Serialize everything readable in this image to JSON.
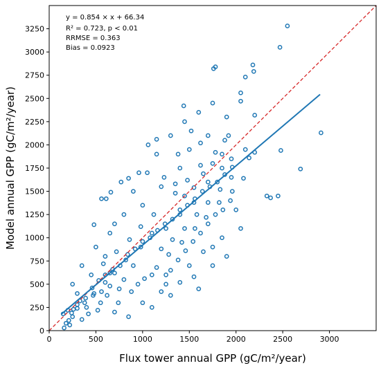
{
  "chart_data": {
    "type": "scatter",
    "xlabel": "Flux tower annual GPP (gC/m²/year)",
    "ylabel": "Model annual GPP (gC/m²/year)",
    "xlim": [
      0,
      3500
    ],
    "ylim": [
      0,
      3500
    ],
    "x_ticks": [
      0,
      500,
      1000,
      1500,
      2000,
      2500,
      3000
    ],
    "y_ticks": [
      0,
      250,
      500,
      750,
      1000,
      1250,
      1500,
      1750,
      2000,
      2250,
      2500,
      2750,
      3000,
      3250
    ],
    "grid": false,
    "annotations": {
      "equation": "y = 0.854 × x + 66.34",
      "r2": "R² = 0.723, p < 0.01",
      "rrmse": "RRMSE = 0.363",
      "bias": "Bias = 0.0923"
    },
    "fit_line": {
      "slope": 0.854,
      "intercept": 66.34,
      "x_range": [
        130,
        2900
      ]
    },
    "one_to_one_line": {
      "x_range": [
        0,
        3500
      ]
    },
    "colors": {
      "points": "#1f77b4",
      "fit": "#1f77b4",
      "one_to_one": "#d62728"
    },
    "points": [
      [
        2550,
        3280
      ],
      [
        2470,
        3050
      ],
      [
        1780,
        2840
      ],
      [
        1760,
        2820
      ],
      [
        2180,
        2860
      ],
      [
        2190,
        2790
      ],
      [
        2100,
        2730
      ],
      [
        1440,
        2420
      ],
      [
        2050,
        2560
      ],
      [
        2050,
        2470
      ],
      [
        2200,
        2320
      ],
      [
        2910,
        2130
      ],
      [
        2480,
        1940
      ],
      [
        2690,
        1740
      ],
      [
        2450,
        1450
      ],
      [
        2330,
        1450
      ],
      [
        2370,
        1430
      ],
      [
        2200,
        1920
      ],
      [
        2140,
        1860
      ],
      [
        150,
        180
      ],
      [
        200,
        220
      ],
      [
        300,
        280
      ],
      [
        480,
        400
      ],
      [
        650,
        620
      ],
      [
        820,
        760
      ],
      [
        980,
        900
      ],
      [
        1100,
        1050
      ],
      [
        1250,
        1100
      ],
      [
        1400,
        1250
      ],
      [
        1550,
        1380
      ],
      [
        1700,
        1600
      ],
      [
        1850,
        1750
      ],
      [
        1950,
        1850
      ],
      [
        2100,
        1950
      ],
      [
        400,
        250
      ],
      [
        550,
        300
      ],
      [
        700,
        200
      ],
      [
        850,
        150
      ],
      [
        1000,
        300
      ],
      [
        1300,
        380
      ],
      [
        1600,
        450
      ],
      [
        1900,
        800
      ],
      [
        2050,
        1100
      ],
      [
        1750,
        900
      ],
      [
        1500,
        700
      ],
      [
        1250,
        600
      ],
      [
        950,
        500
      ],
      [
        750,
        450
      ],
      [
        600,
        520
      ],
      [
        450,
        600
      ],
      [
        350,
        700
      ],
      [
        500,
        900
      ],
      [
        650,
        1050
      ],
      [
        800,
        1250
      ],
      [
        900,
        1500
      ],
      [
        1050,
        1700
      ],
      [
        1150,
        1900
      ],
      [
        1300,
        2100
      ],
      [
        1450,
        2250
      ],
      [
        1600,
        2350
      ],
      [
        1750,
        2450
      ],
      [
        1900,
        2300
      ],
      [
        1700,
        2100
      ],
      [
        1500,
        1950
      ],
      [
        1400,
        1750
      ],
      [
        1200,
        1550
      ],
      [
        1000,
        1350
      ],
      [
        700,
        1150
      ],
      [
        600,
        800
      ],
      [
        250,
        500
      ],
      [
        300,
        400
      ],
      [
        250,
        150
      ],
      [
        180,
        80
      ],
      [
        220,
        60
      ],
      [
        350,
        120
      ],
      [
        420,
        180
      ],
      [
        520,
        220
      ],
      [
        620,
        380
      ],
      [
        740,
        300
      ],
      [
        880,
        420
      ],
      [
        1020,
        560
      ],
      [
        1150,
        680
      ],
      [
        1280,
        820
      ],
      [
        1420,
        950
      ],
      [
        1560,
        1100
      ],
      [
        1680,
        1220
      ],
      [
        1820,
        1380
      ],
      [
        1960,
        1500
      ],
      [
        2080,
        1640
      ],
      [
        1350,
        1480
      ],
      [
        1480,
        1620
      ],
      [
        1620,
        1780
      ],
      [
        1780,
        1920
      ],
      [
        1880,
        2050
      ],
      [
        1120,
        1250
      ],
      [
        980,
        1120
      ],
      [
        860,
        980
      ],
      [
        720,
        850
      ],
      [
        580,
        720
      ],
      [
        1650,
        850
      ],
      [
        1550,
        580
      ],
      [
        1400,
        520
      ],
      [
        1200,
        420
      ],
      [
        1100,
        250
      ],
      [
        1750,
        700
      ],
      [
        1850,
        1000
      ],
      [
        2000,
        1300
      ],
      [
        1950,
        1650
      ],
      [
        1830,
        1520
      ],
      [
        1700,
        1380
      ],
      [
        1580,
        1250
      ],
      [
        1450,
        1100
      ],
      [
        1320,
        980
      ],
      [
        1200,
        880
      ],
      [
        480,
        1140
      ],
      [
        560,
        1420
      ],
      [
        610,
        1420
      ],
      [
        660,
        1490
      ],
      [
        770,
        1600
      ],
      [
        850,
        1640
      ],
      [
        960,
        1700
      ],
      [
        1060,
        2000
      ],
      [
        1150,
        2060
      ],
      [
        1230,
        1650
      ],
      [
        1350,
        1580
      ],
      [
        1450,
        1450
      ],
      [
        1550,
        1540
      ],
      [
        1650,
        1690
      ],
      [
        1750,
        1800
      ],
      [
        1850,
        1900
      ],
      [
        1920,
        2100
      ],
      [
        1620,
        2020
      ],
      [
        1520,
        2150
      ],
      [
        1380,
        1900
      ],
      [
        160,
        30
      ],
      [
        210,
        110
      ],
      [
        260,
        230
      ],
      [
        330,
        320
      ],
      [
        390,
        350
      ],
      [
        460,
        460
      ],
      [
        530,
        540
      ],
      [
        600,
        600
      ],
      [
        680,
        660
      ],
      [
        760,
        700
      ],
      [
        840,
        820
      ],
      [
        920,
        880
      ],
      [
        1000,
        960
      ],
      [
        1080,
        1000
      ],
      [
        1160,
        1080
      ],
      [
        1240,
        1150
      ],
      [
        1320,
        1200
      ],
      [
        1400,
        1300
      ],
      [
        1480,
        1350
      ],
      [
        1560,
        1420
      ],
      [
        1640,
        1500
      ],
      [
        1720,
        1550
      ],
      [
        1800,
        1600
      ],
      [
        1880,
        1680
      ],
      [
        1960,
        1760
      ],
      [
        1300,
        650
      ],
      [
        1380,
        760
      ],
      [
        1460,
        860
      ],
      [
        1540,
        960
      ],
      [
        1620,
        1050
      ],
      [
        1700,
        1150
      ],
      [
        1780,
        1250
      ],
      [
        1860,
        1300
      ],
      [
        1940,
        1400
      ],
      [
        1250,
        500
      ],
      [
        1100,
        600
      ],
      [
        900,
        700
      ],
      [
        800,
        550
      ],
      [
        700,
        620
      ],
      [
        650,
        480
      ],
      [
        560,
        420
      ],
      [
        470,
        380
      ],
      [
        380,
        300
      ],
      [
        300,
        240
      ],
      [
        240,
        190
      ]
    ]
  }
}
